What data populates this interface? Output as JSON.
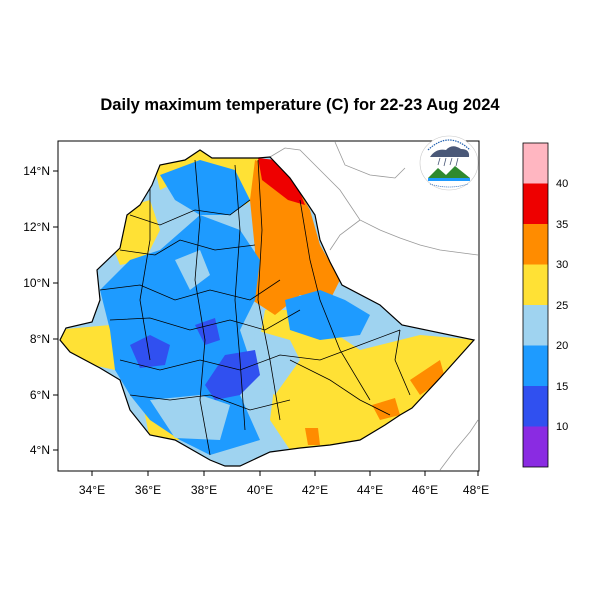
{
  "title": "Daily maximum temperature (C) for 22-23 Aug 2024",
  "map": {
    "lon_range": [
      33,
      48
    ],
    "lat_range": [
      3.2,
      14.9
    ],
    "lon_ticks": [
      "34°E",
      "36°E",
      "38°E",
      "40°E",
      "42°E",
      "44°E",
      "46°E",
      "48°E"
    ],
    "lat_ticks": [
      "14°N",
      "12°N",
      "10°N",
      "8°N",
      "6°N",
      "4°N"
    ]
  },
  "colorbar": {
    "labels": [
      "40",
      "35",
      "30",
      "25",
      "20",
      "15",
      "10"
    ],
    "colors": [
      "#ffb6c1",
      "#ee0000",
      "#ff8c00",
      "#ffe135",
      "#9fd3f0",
      "#1e9bff",
      "#3050f0",
      "#8a2be2"
    ]
  },
  "colors": {
    "pink": "#ffb6c1",
    "red": "#ee0000",
    "orange": "#ff8c00",
    "yellow": "#ffe135",
    "light_blue": "#9fd3f0",
    "blue": "#1e9bff",
    "dark_blue": "#3050f0",
    "purple": "#8a2be2"
  }
}
